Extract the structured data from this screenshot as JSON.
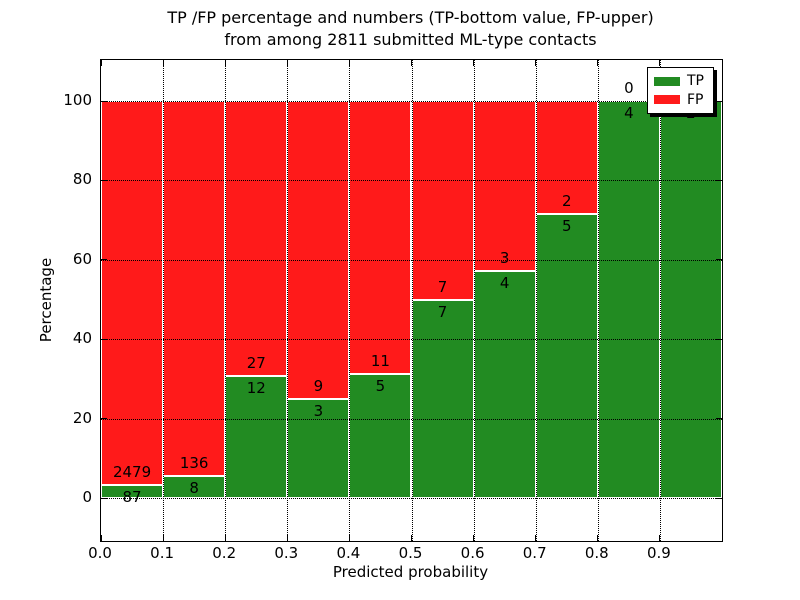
{
  "figure": {
    "title_line1": "TP /FP percentage and numbers (TP-bottom value, FP-upper)",
    "title_line2": "from among 2811 submitted ML-type contacts"
  },
  "axes": {
    "xlabel": "Predicted probability",
    "ylabel": "Percentage",
    "xtick_labels": [
      "0.0",
      "0.1",
      "0.2",
      "0.3",
      "0.4",
      "0.5",
      "0.6",
      "0.7",
      "0.8",
      "0.9"
    ],
    "ytick_labels": [
      "0",
      "20",
      "40",
      "60",
      "80",
      "100"
    ],
    "ytick_values": [
      0,
      20,
      40,
      60,
      80,
      100
    ]
  },
  "legend": {
    "items": [
      {
        "label": "TP",
        "color": "#228b22"
      },
      {
        "label": "FP",
        "color": "#ff1a1a"
      }
    ]
  },
  "colors": {
    "tp_green": "#228b22",
    "fp_red": "#ff1a1a",
    "grid": "#000000",
    "background": "#ffffff"
  },
  "chart_data": {
    "type": "bar",
    "stacked": true,
    "normalization": "each 0.1-wide probability bin stacked to 100%",
    "title": "TP /FP percentage and numbers (TP-bottom value, FP-upper) from among 2811 submitted ML-type contacts",
    "xlabel": "Predicted probability",
    "ylabel": "Percentage",
    "xlim": [
      0.0,
      1.0
    ],
    "ylim": [
      -10,
      110
    ],
    "grid": "dotted",
    "legend_position": "upper right",
    "total_contacts": 2811,
    "bin_width": 0.1,
    "bins": [
      {
        "x_start": 0.0,
        "x_end": 0.1,
        "tp": 87,
        "fp": 2479,
        "tp_percent": 3.39,
        "fp_percent": 96.61
      },
      {
        "x_start": 0.1,
        "x_end": 0.2,
        "tp": 8,
        "fp": 136,
        "tp_percent": 5.56,
        "fp_percent": 94.44
      },
      {
        "x_start": 0.2,
        "x_end": 0.3,
        "tp": 12,
        "fp": 27,
        "tp_percent": 30.77,
        "fp_percent": 69.23
      },
      {
        "x_start": 0.3,
        "x_end": 0.4,
        "tp": 3,
        "fp": 9,
        "tp_percent": 25.0,
        "fp_percent": 75.0
      },
      {
        "x_start": 0.4,
        "x_end": 0.5,
        "tp": 5,
        "fp": 11,
        "tp_percent": 31.25,
        "fp_percent": 68.75
      },
      {
        "x_start": 0.5,
        "x_end": 0.6,
        "tp": 7,
        "fp": 7,
        "tp_percent": 50.0,
        "fp_percent": 50.0
      },
      {
        "x_start": 0.6,
        "x_end": 0.7,
        "tp": 4,
        "fp": 3,
        "tp_percent": 57.14,
        "fp_percent": 42.86
      },
      {
        "x_start": 0.7,
        "x_end": 0.8,
        "tp": 5,
        "fp": 2,
        "tp_percent": 71.43,
        "fp_percent": 28.57
      },
      {
        "x_start": 0.8,
        "x_end": 0.9,
        "tp": 4,
        "fp": 0,
        "tp_percent": 100.0,
        "fp_percent": 0.0
      },
      {
        "x_start": 0.9,
        "x_end": 1.0,
        "tp": 2,
        "fp": 0,
        "tp_percent": 100.0,
        "fp_percent": 0.0
      }
    ],
    "series": [
      {
        "name": "TP",
        "color": "#228b22",
        "counts": [
          87,
          8,
          12,
          3,
          5,
          7,
          4,
          5,
          4,
          2
        ],
        "values_percent": [
          3.39,
          5.56,
          30.77,
          25.0,
          31.25,
          50.0,
          57.14,
          71.43,
          100.0,
          100.0
        ]
      },
      {
        "name": "FP",
        "color": "#ff1a1a",
        "counts": [
          2479,
          136,
          27,
          9,
          11,
          7,
          3,
          2,
          0,
          0
        ],
        "values_percent": [
          96.61,
          94.44,
          69.23,
          75.0,
          68.75,
          50.0,
          42.86,
          28.57,
          0.0,
          0.0
        ]
      }
    ],
    "annotation_note": "FP count printed above each TP/FP boundary, TP count below it; FP label of last bin lies behind the legend box"
  }
}
